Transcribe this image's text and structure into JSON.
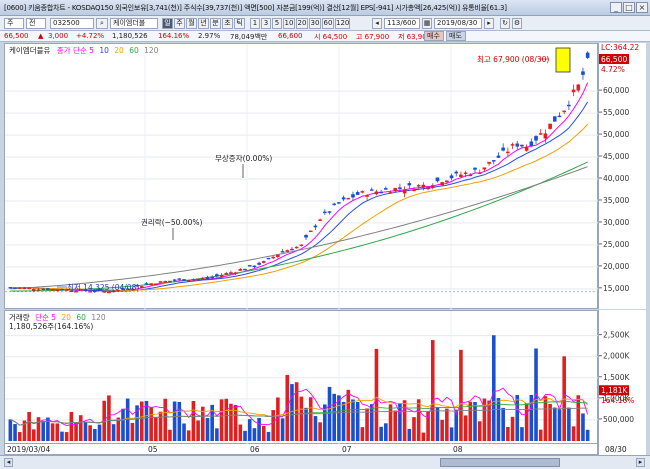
{
  "window": {
    "title": "[0600] 키움종합차트 - KOSDAQ150 외국인보유[3,741(천)] 주식수[39,737(천)] 액면[500] 자본금[199(억)] 결산[12월] EPS[-941] 시가총액[26,425(억)] 유통비율[61.3]"
  },
  "toolbar": {
    "market": "주",
    "type": "전",
    "code": "032500",
    "name": "케이엠더블",
    "periods": [
      "일",
      "주",
      "월",
      "년",
      "분",
      "초",
      "틱"
    ],
    "intervals": [
      "1",
      "3",
      "5",
      "10",
      "20",
      "30",
      "60",
      "120"
    ],
    "count": "113/600",
    "date": "2019/08/30",
    "sell_label": "매수",
    "buy_label": "매도"
  },
  "quote": {
    "price": "66,500",
    "change": "3,000",
    "change_pct": "+4.72%",
    "volume": "1,180,526",
    "vol_pct": "164.16%",
    "turnover": "2.97%",
    "amount": "78,049백만",
    "high_first": "66,600",
    "open": "시 64,500",
    "high": "고 67,900",
    "low": "저 63,900"
  },
  "price_panel": {
    "legend": [
      "케이엠더블유",
      "종가 단순 5",
      "10",
      "20",
      "60",
      "120"
    ],
    "annotations": {
      "high": "최고 67,900 (08/30)",
      "low": "최저 14,325 (04/08)",
      "split": "무상증자(0.00%)",
      "rights": "권리락(−50.00%)"
    },
    "axis_ticks": [
      "60,000",
      "55,000",
      "50,000",
      "45,000",
      "40,000",
      "35,000",
      "30,000",
      "25,000",
      "20,000",
      "15,000"
    ],
    "axis_labels": {
      "top": "LC:364.22",
      "price": "66,500",
      "pct": "4.72%"
    }
  },
  "volume_panel": {
    "legend": [
      "거래량",
      "단순 5",
      "20",
      "60",
      "120"
    ],
    "sublabel": "1,180,526주(164.16%)",
    "axis_ticks": [
      "2,500K",
      "2,000K",
      "1,500K",
      "1,000K",
      "500,000"
    ],
    "axis_labels": {
      "vol": "1,181K",
      "pct": "164.16%"
    }
  },
  "x_axis": {
    "labels": [
      "2019/03/04",
      "05",
      "06",
      "07",
      "08"
    ],
    "right": "08/30"
  },
  "colors": {
    "up": "#e02020",
    "down": "#1a4fd0",
    "ma5": "#ff00ff",
    "ma10": "#2a4be8",
    "ma20": "#f0a000",
    "ma60": "#2ea84a",
    "ma120": "#808080"
  },
  "chart_data": {
    "type": "candlestick",
    "x": [
      "2019/03/04",
      "2019/08/30"
    ],
    "ylim": [
      12000,
      68000
    ],
    "series": [
      {
        "name": "종가",
        "values_start": 15300,
        "values_end": 66500,
        "low": 14325,
        "high": 67900
      }
    ]
  }
}
